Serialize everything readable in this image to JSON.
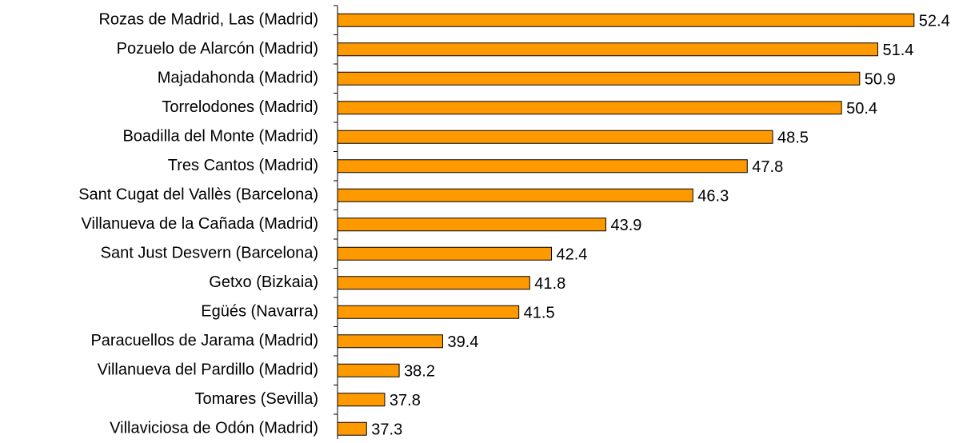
{
  "chart_data": {
    "type": "bar",
    "orientation": "horizontal",
    "categories": [
      "Rozas de Madrid, Las (Madrid)",
      "Pozuelo de Alarcón (Madrid)",
      "Majadahonda (Madrid)",
      "Torrelodones (Madrid)",
      "Boadilla del Monte (Madrid)",
      "Tres Cantos (Madrid)",
      "Sant Cugat del Vallès (Barcelona)",
      "Villanueva de la Cañada (Madrid)",
      "Sant Just Desvern (Barcelona)",
      "Getxo (Bizkaia)",
      "Egüés (Navarra)",
      "Paracuellos de Jarama (Madrid)",
      "Villanueva del Pardillo (Madrid)",
      "Tomares (Sevilla)",
      "Villaviciosa de Odón (Madrid)"
    ],
    "values": [
      52.4,
      51.4,
      50.9,
      50.4,
      48.5,
      47.8,
      46.3,
      43.9,
      42.4,
      41.8,
      41.5,
      39.4,
      38.2,
      37.8,
      37.3
    ],
    "color": "#ff9900",
    "xlim": [
      36.5,
      53.0
    ]
  }
}
